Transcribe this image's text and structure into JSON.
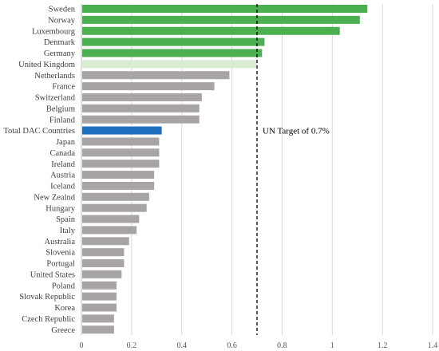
{
  "chart_data": {
    "type": "bar",
    "orientation": "horizontal",
    "title": "",
    "xlabel": "",
    "ylabel": "",
    "xlim": [
      0,
      1.4
    ],
    "x_ticks": [
      0,
      0.2,
      0.4,
      0.6,
      0.8,
      1,
      1.2,
      1.4
    ],
    "grid": "vertical",
    "categories": [
      "Sweden",
      "Norway",
      "Luxembourg",
      "Denmark",
      "Germany",
      "United Kingdom",
      "Netherlands",
      "France",
      "Switzerland",
      "Belgium",
      "Finland",
      "Total DAC Countries",
      "Japan",
      "Canada",
      "Ireland",
      "Austria",
      "Iceland",
      "New Zealnd",
      "Hungary",
      "Spain",
      "Italy",
      "Australia",
      "Slovenia",
      "Portugal",
      "United States",
      "Poland",
      "Slovak Republic",
      "Korea",
      "Czech Republic",
      "Greece"
    ],
    "values": [
      1.14,
      1.11,
      1.03,
      0.73,
      0.72,
      0.7,
      0.59,
      0.53,
      0.48,
      0.47,
      0.47,
      0.32,
      0.31,
      0.31,
      0.31,
      0.29,
      0.29,
      0.27,
      0.26,
      0.23,
      0.22,
      0.19,
      0.17,
      0.17,
      0.16,
      0.14,
      0.14,
      0.14,
      0.13,
      0.13
    ],
    "bar_colors": [
      "#4caf50",
      "#4caf50",
      "#4caf50",
      "#4caf50",
      "#4caf50",
      "#d7ecd2",
      "#a9a4a4",
      "#a9a4a4",
      "#a9a4a4",
      "#a9a4a4",
      "#a9a4a4",
      "#1f6fbf",
      "#a9a4a4",
      "#a9a4a4",
      "#a9a4a4",
      "#a9a4a4",
      "#a9a4a4",
      "#a9a4a4",
      "#a9a4a4",
      "#a9a4a4",
      "#a9a4a4",
      "#a9a4a4",
      "#a9a4a4",
      "#a9a4a4",
      "#a9a4a4",
      "#a9a4a4",
      "#a9a4a4",
      "#a9a4a4",
      "#a9a4a4",
      "#a9a4a4"
    ],
    "reference_line": {
      "value": 0.7,
      "style": "dashed",
      "label": "UN Target of 0.7%"
    }
  }
}
